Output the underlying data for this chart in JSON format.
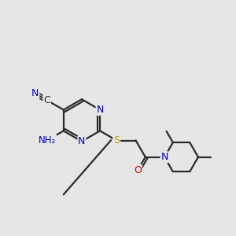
{
  "bg_color": "#e6e6e6",
  "bond_color": "#2a2a2a",
  "bond_width": 1.6,
  "atom_colors": {
    "N": "#0000cc",
    "S": "#b8a000",
    "O": "#cc0000",
    "C": "#2a2a2a"
  },
  "font_size": 9.0,
  "fig_size": [
    3.0,
    3.0
  ],
  "dpi": 100,
  "xlim": [
    0.0,
    10.0
  ],
  "ylim": [
    1.5,
    9.0
  ]
}
